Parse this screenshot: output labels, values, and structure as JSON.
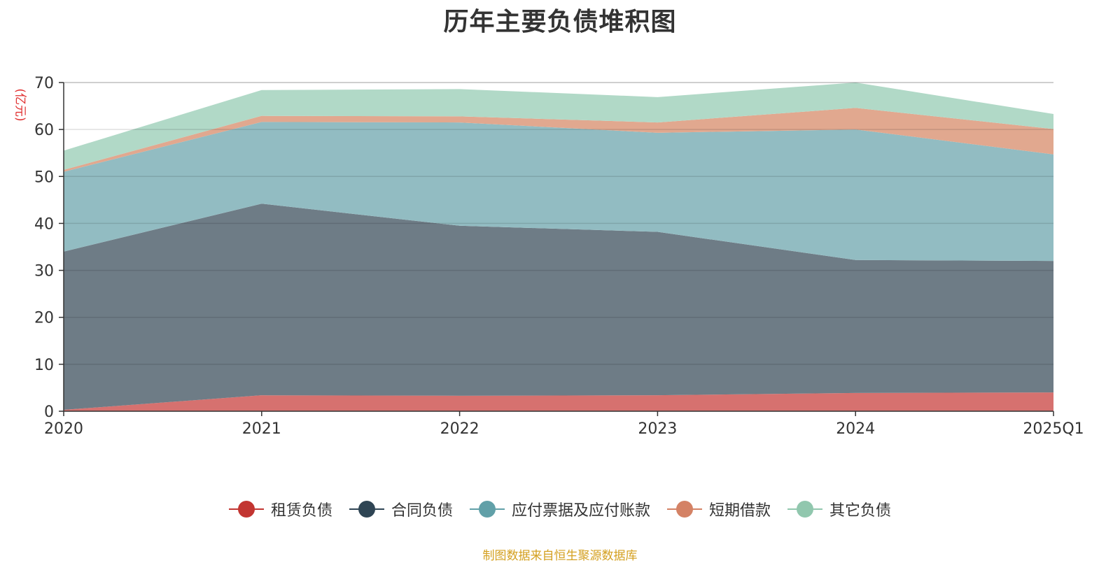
{
  "chart_data": {
    "type": "area",
    "title": "历年主要负债堆积图",
    "unit_label": "(亿元)",
    "categories": [
      "2020",
      "2021",
      "2022",
      "2023",
      "2024",
      "2025Q1"
    ],
    "ylim": [
      0,
      70
    ],
    "yticks": [
      0,
      10,
      20,
      30,
      40,
      50,
      60,
      70
    ],
    "grid": true,
    "stacked": true,
    "legend_position": "bottom",
    "series": [
      {
        "name": "租赁负债",
        "color": "#c23531",
        "fill": "#d6716f",
        "values": [
          0.3,
          3.4,
          3.3,
          3.4,
          3.9,
          4.0
        ]
      },
      {
        "name": "合同负债",
        "color": "#2f4554",
        "fill": "#6e7c86",
        "values": [
          33.7,
          40.8,
          36.2,
          34.8,
          28.3,
          28.0
        ]
      },
      {
        "name": "应付票据及应付账款",
        "color": "#61a0a8",
        "fill": "#92bcc2",
        "values": [
          17.0,
          17.4,
          22.0,
          21.1,
          27.8,
          22.7
        ]
      },
      {
        "name": "短期借款",
        "color": "#d48265",
        "fill": "#e1a88f",
        "values": [
          0.4,
          1.3,
          1.3,
          2.2,
          4.6,
          5.4
        ]
      },
      {
        "name": "其它负债",
        "color": "#91c7ae",
        "fill": "#b1d9c7",
        "values": [
          4.1,
          5.5,
          5.8,
          5.4,
          5.4,
          3.2
        ]
      }
    ],
    "source": "制图数据来自恒生聚源数据库"
  }
}
